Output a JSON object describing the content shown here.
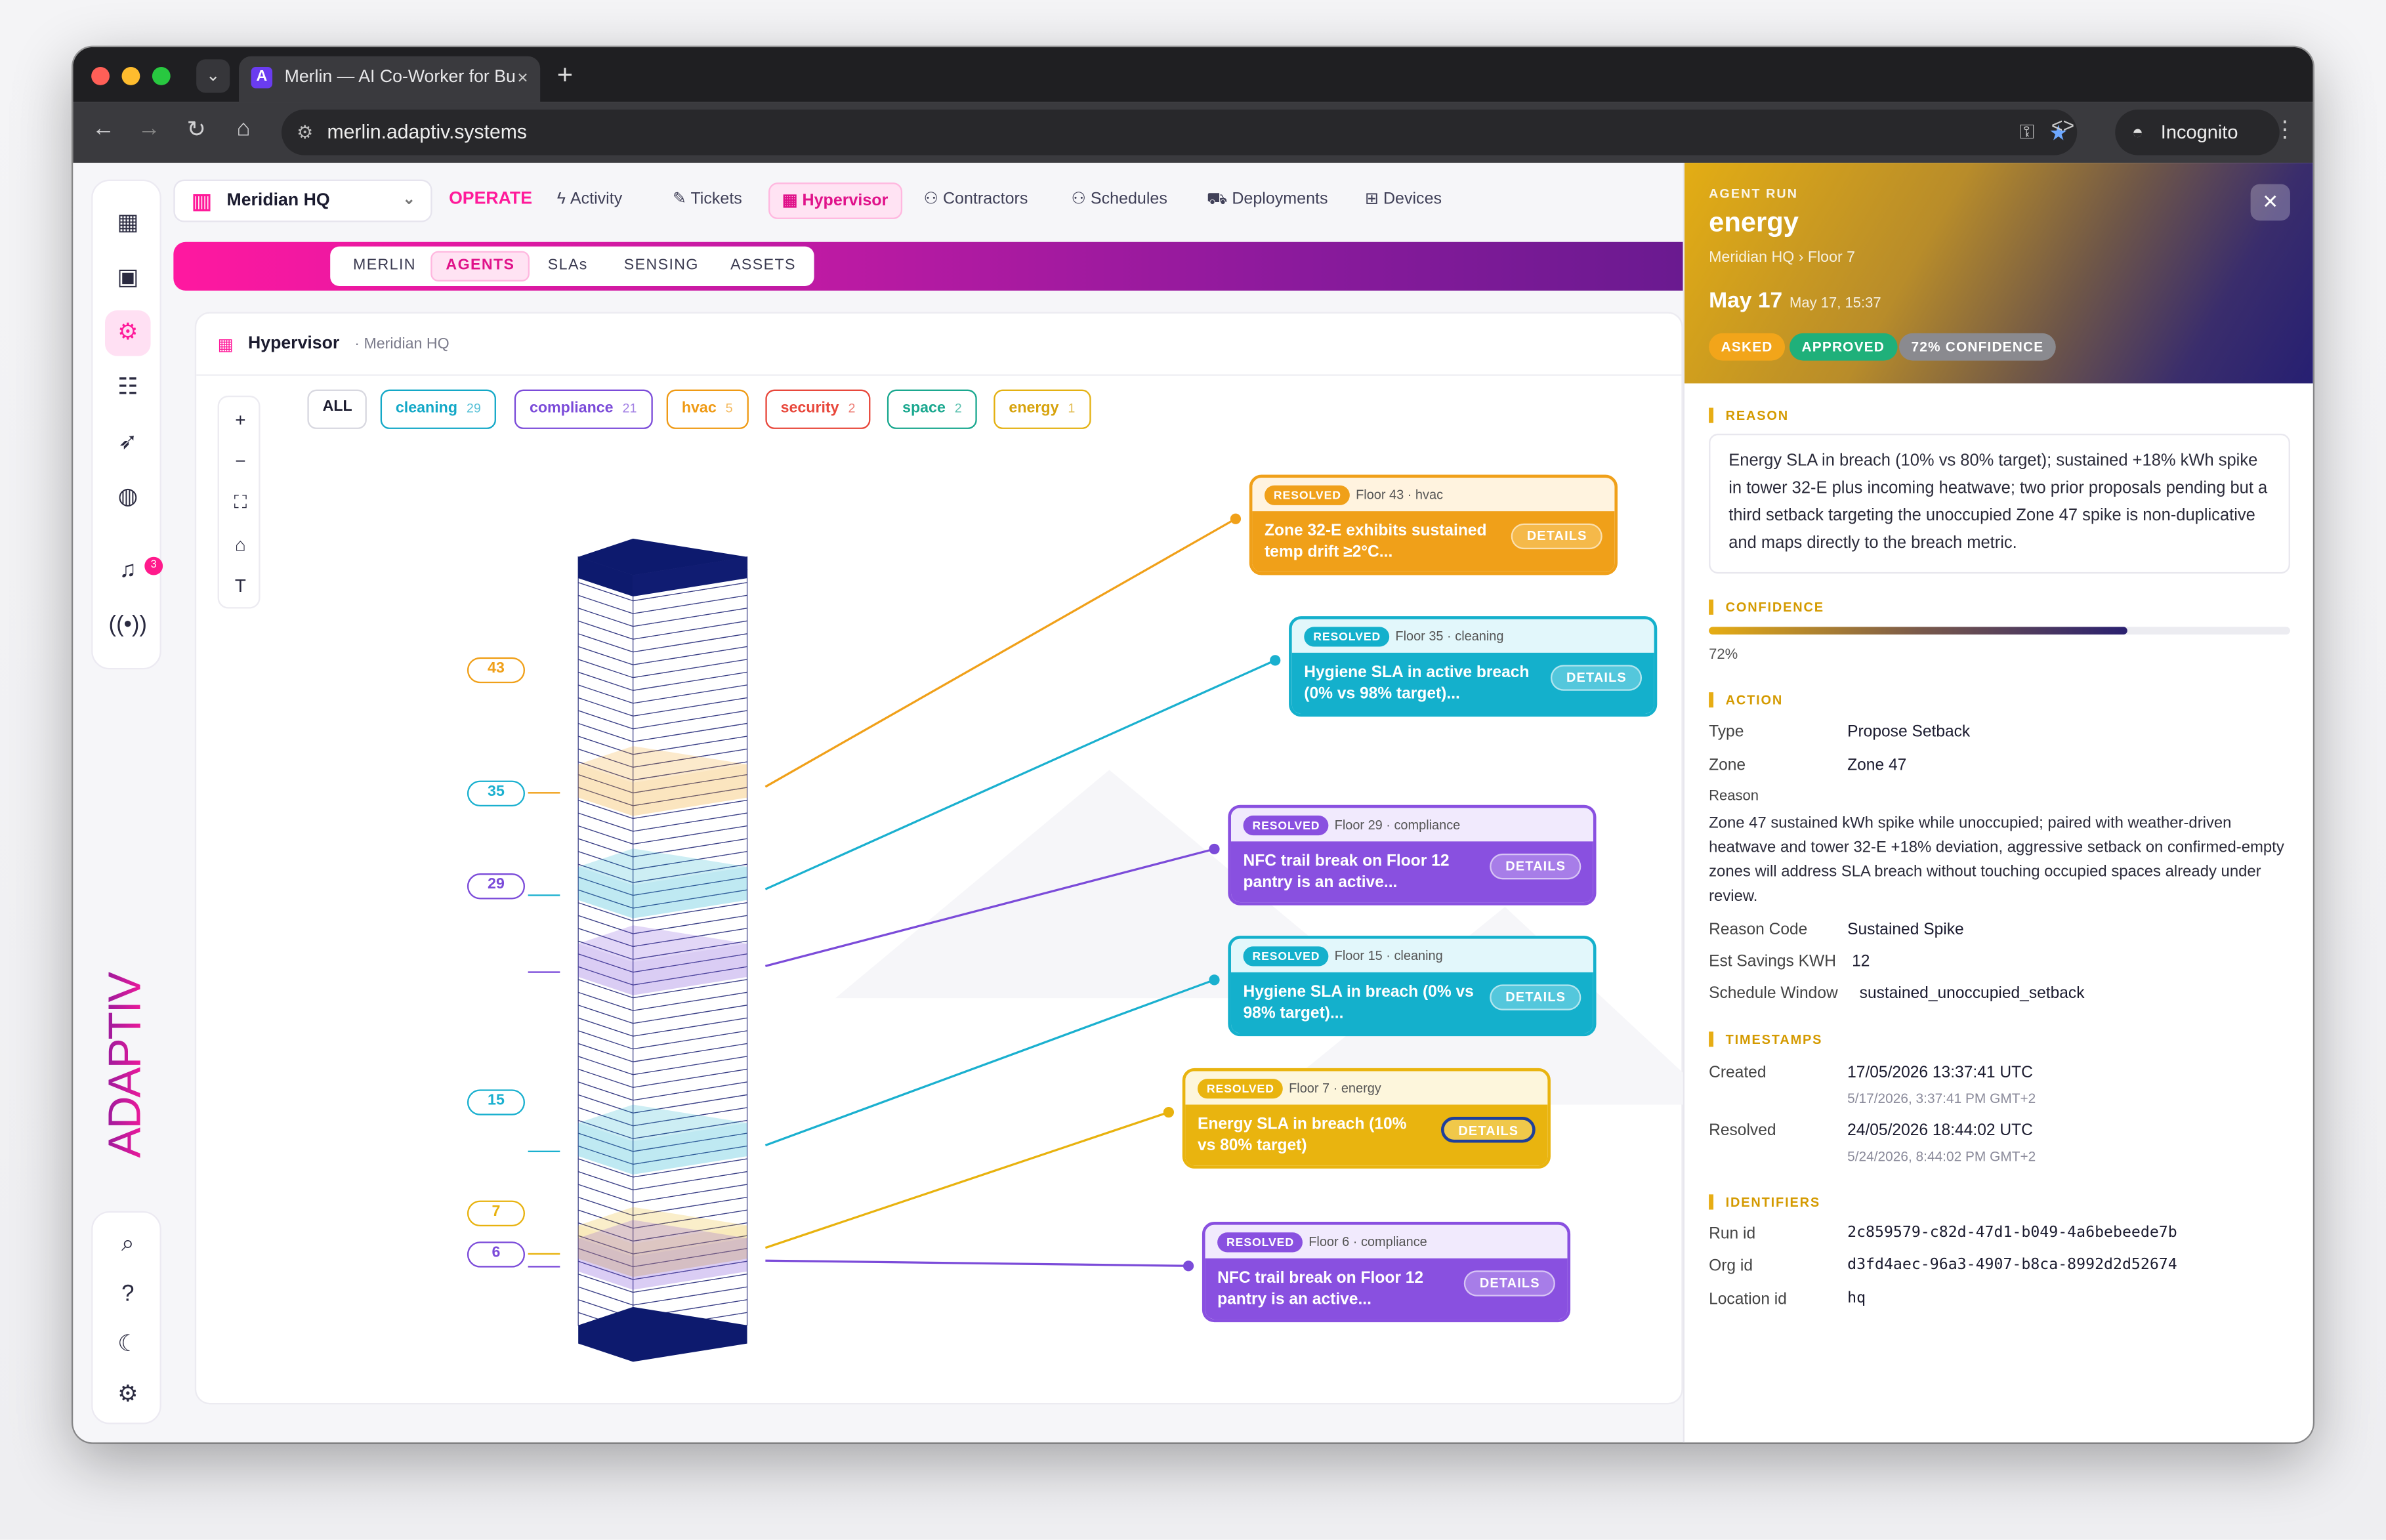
{
  "browser": {
    "tab_title": "Merlin — AI Co-Worker for Bu",
    "tab_close": "×",
    "new_tab": "+",
    "url": "merlin.adaptiv.systems",
    "incognito_label": "Incognito",
    "icons": [
      "back-icon",
      "forward-icon",
      "reload-icon",
      "home-icon",
      "key-icon",
      "star-icon",
      "code-icon",
      "incognito-icon",
      "kebab-icon"
    ]
  },
  "sidebar": {
    "notification_count": "3",
    "brand": "ADAPTIV",
    "icons": [
      "dashboard-icon",
      "monitor-icon",
      "agents-gear-icon",
      "calendar-list-icon",
      "rocket-icon",
      "globe-icon",
      "bell-icon",
      "broadcast-icon",
      "search-icon",
      "help-icon",
      "moon-icon",
      "settings-icon"
    ]
  },
  "topnav": {
    "location": "Meridian HQ",
    "section": "OPERATE",
    "items": [
      "Activity",
      "Tickets",
      "Hypervisor",
      "Contractors",
      "Schedules",
      "Deployments",
      "Devices"
    ],
    "active": "Hypervisor"
  },
  "subtabs": {
    "items": [
      "MERLIN",
      "AGENTS",
      "SLAs",
      "SENSING",
      "ASSETS"
    ],
    "active": "AGENTS"
  },
  "panel": {
    "title": "Hypervisor",
    "subtitle": "· Meridian HQ"
  },
  "zoom_controls": [
    "+",
    "−",
    "⛶",
    "⌂",
    "T"
  ],
  "filters": [
    {
      "label": "ALL",
      "count": "",
      "color": "#1b1b2f"
    },
    {
      "label": "cleaning",
      "count": "29",
      "color": "#13a8c7"
    },
    {
      "label": "compliance",
      "count": "21",
      "color": "#7b4bd9"
    },
    {
      "label": "hvac",
      "count": "5",
      "color": "#ef9a14"
    },
    {
      "label": "security",
      "count": "2",
      "color": "#e8473b"
    },
    {
      "label": "space",
      "count": "2",
      "color": "#1aa88f"
    },
    {
      "label": "energy",
      "count": "1",
      "color": "#e4b112"
    }
  ],
  "building": {
    "floors": 60
  },
  "floor_markers": [
    {
      "floor": 43,
      "label": "43",
      "color": "#f0a019"
    },
    {
      "floor": 35,
      "label": "35",
      "color": "#1ab0cf"
    },
    {
      "floor": 29,
      "label": "29",
      "color": "#7b4bd9"
    },
    {
      "floor": 15,
      "label": "15",
      "color": "#1ab0cf"
    },
    {
      "floor": 7,
      "label": "7",
      "color": "#e8b20e"
    },
    {
      "floor": 6,
      "label": "6",
      "color": "#7b4bd9"
    }
  ],
  "incidents": [
    {
      "status": "RESOLVED",
      "meta": "Floor 43 · hvac",
      "title": "Zone 32-E exhibits sustained temp drift ≥2°C...",
      "details": "DETAILS",
      "color": "#f0a019",
      "tint": "#fff3df",
      "floor": 43
    },
    {
      "status": "RESOLVED",
      "meta": "Floor 35 · cleaning",
      "title": "Hygiene SLA in active breach (0% vs 98% target)...",
      "details": "DETAILS",
      "color": "#14b0cc",
      "tint": "#e2f7fb",
      "floor": 35
    },
    {
      "status": "RESOLVED",
      "meta": "Floor 29 · compliance",
      "title": "NFC trail break on Floor 12 pantry is an active...",
      "details": "DETAILS",
      "color": "#8950e0",
      "tint": "#f1eafd",
      "floor": 29
    },
    {
      "status": "RESOLVED",
      "meta": "Floor 15 · cleaning",
      "title": "Hygiene SLA in breach (0% vs 98% target)...",
      "details": "DETAILS",
      "color": "#14b0cc",
      "tint": "#e2f7fb",
      "floor": 15
    },
    {
      "status": "RESOLVED",
      "meta": "Floor 7 · energy",
      "title": "Energy SLA in breach (10% vs 80% target)",
      "details": "DETAILS",
      "color": "#e9b40f",
      "tint": "#fdf6dc",
      "floor": 7
    },
    {
      "status": "RESOLVED",
      "meta": "Floor 6 · compliance",
      "title": "NFC trail break on Floor 12 pantry is an active...",
      "details": "DETAILS",
      "color": "#8950e0",
      "tint": "#f1eafd",
      "floor": 6
    }
  ],
  "drawer": {
    "label": "AGENT RUN",
    "title": "energy",
    "crumb": "Meridian HQ › Floor 7",
    "date": "May 17",
    "date_sub": "May 17, 15:37",
    "close": "✕",
    "pills": [
      {
        "label": "ASKED",
        "color": "#f2a51a"
      },
      {
        "label": "APPROVED",
        "color": "#1fb07a"
      },
      {
        "label": "72% CONFIDENCE",
        "color": "#8a8a8f"
      }
    ],
    "reason_title": "REASON",
    "reason": "Energy SLA in breach (10% vs 80% target); sustained +18% kWh spike in tower 32-E plus incoming heatwave; two prior proposals pending but a third setback targeting the unoccupied Zone 47 spike is non-duplicative and maps directly to the breach metric.",
    "confidence_title": "CONFIDENCE",
    "confidence_value": 0.72,
    "confidence_label": "72%",
    "action_title": "ACTION",
    "action": {
      "type_label": "Type",
      "type": "Propose Setback",
      "zone_label": "Zone",
      "zone": "Zone 47",
      "reason_label": "Reason",
      "reason": "Zone 47 sustained kWh spike while unoccupied; paired with weather-driven heatwave and tower 32-E +18% deviation, aggressive setback on confirmed-empty zones will address SLA breach without touching occupied spaces already under review.",
      "code_label": "Reason Code",
      "code": "Sustained Spike",
      "savings_label": "Est Savings KWH",
      "savings": "12",
      "window_label": "Schedule Window",
      "window": "sustained_unoccupied_setback"
    },
    "timestamps_title": "TIMESTAMPS",
    "timestamps": {
      "created_label": "Created",
      "created": "17/05/2026 13:37:41 UTC",
      "created_local": "5/17/2026, 3:37:41 PM GMT+2",
      "resolved_label": "Resolved",
      "resolved": "24/05/2026 18:44:02 UTC",
      "resolved_local": "5/24/2026, 8:44:02 PM GMT+2"
    },
    "identifiers_title": "IDENTIFIERS",
    "identifiers": {
      "run_label": "Run id",
      "run": "2c859579-c82d-47d1-b049-4a6bebeede7b",
      "org_label": "Org id",
      "org": "d3fd4aec-96a3-4907-b8ca-8992d2d52674",
      "loc_label": "Location id",
      "loc": "hq"
    }
  }
}
